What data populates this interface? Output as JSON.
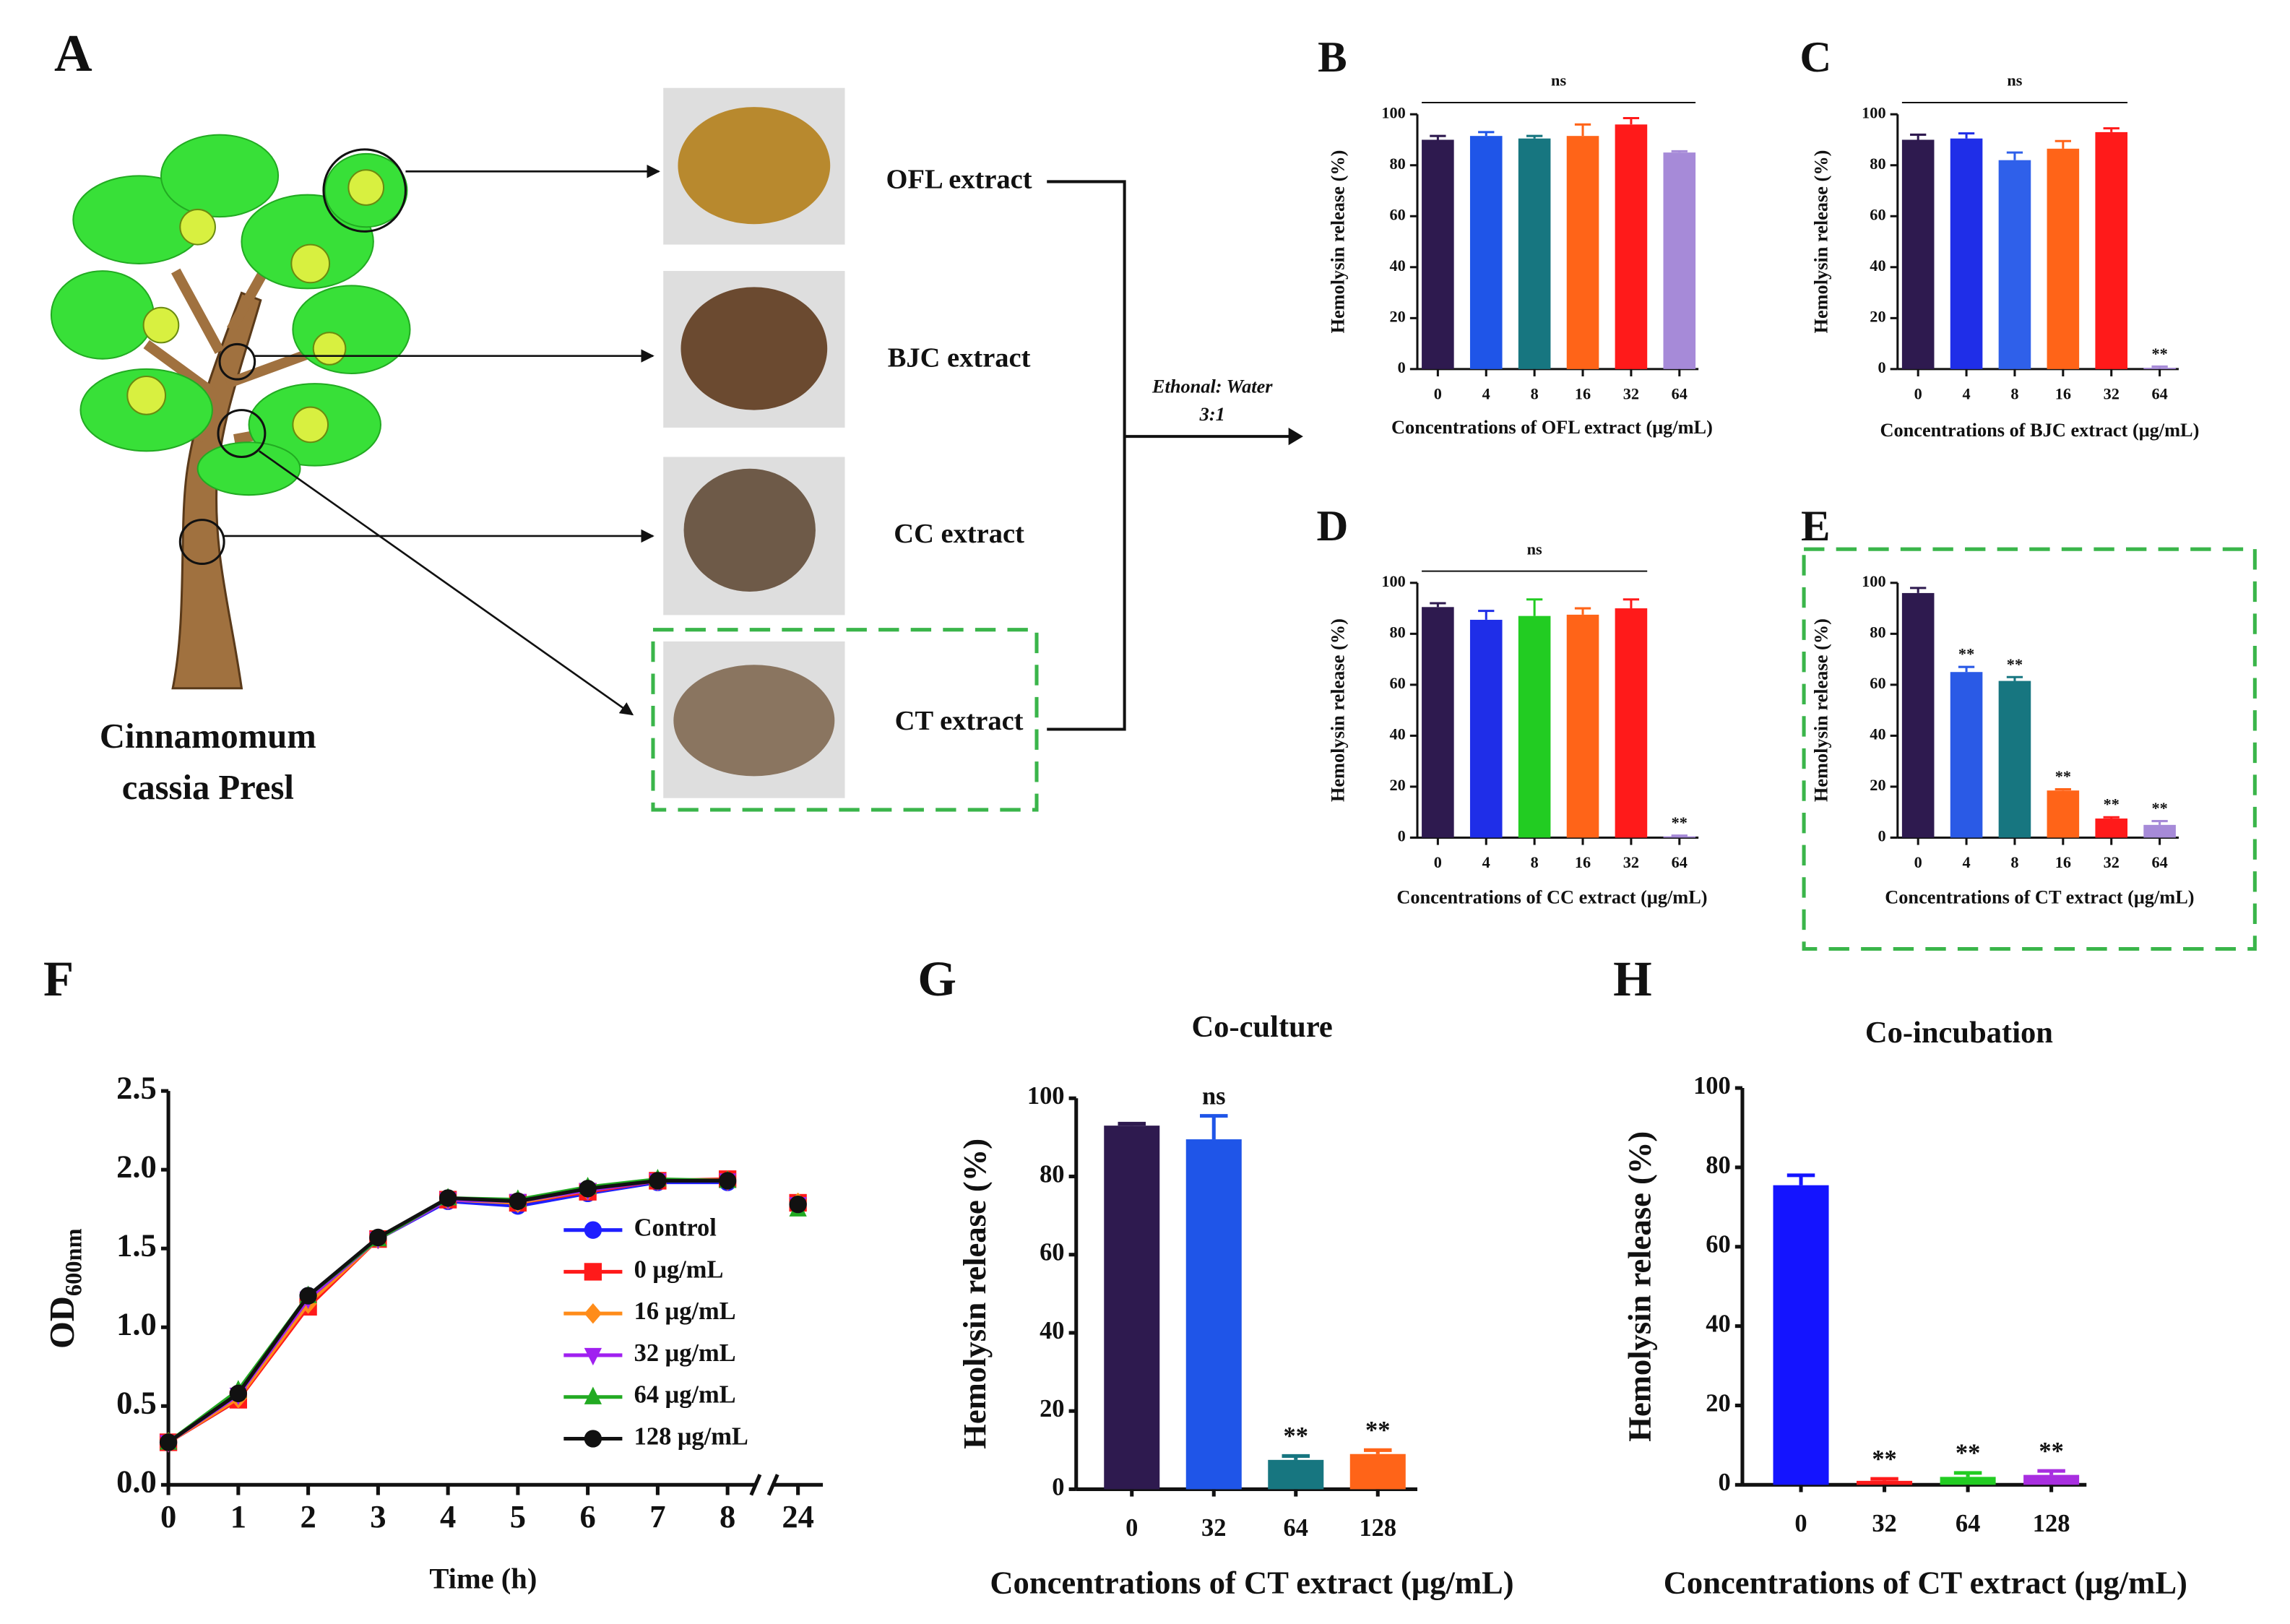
{
  "panel_a": {
    "label": "A",
    "species": [
      "Cinnamomum",
      "cassia Presl"
    ],
    "extracts": [
      "OFL extract",
      "BJC extract",
      "CC extract",
      "CT extract"
    ],
    "solvent": [
      "Ethonal: Water",
      "3:1"
    ]
  },
  "chart_data": [
    {
      "type": "bar",
      "label": "B",
      "ylabel": "Hemolysin release (%)",
      "xlabel": "Concentrations of OFL extract (μg/mL)",
      "categories": [
        "0",
        "4",
        "8",
        "16",
        "32",
        "64"
      ],
      "values": [
        90,
        91.5,
        90.5,
        91.5,
        96,
        85
      ],
      "errors": [
        1.5,
        1.5,
        1,
        4.5,
        2.5,
        0.5
      ],
      "colors": [
        "#2e1a4f",
        "#1f55e8",
        "#177680",
        "#ff6418",
        "#ff1a1a",
        "#a68ad8"
      ],
      "bar_labels": [
        null,
        null,
        null,
        null,
        null,
        null
      ],
      "bracket": {
        "text": "ns",
        "categories": [
          "0",
          "64"
        ]
      },
      "ylim": [
        0,
        100
      ],
      "yticks": [
        0,
        20,
        40,
        60,
        80,
        100
      ]
    },
    {
      "type": "bar",
      "label": "C",
      "ylabel": "Hemolysin release (%)",
      "xlabel": "Concentrations of BJC extract (μg/mL)",
      "categories": [
        "0",
        "4",
        "8",
        "16",
        "32",
        "64"
      ],
      "values": [
        90,
        90.5,
        82,
        86.5,
        93,
        0.5
      ],
      "errors": [
        2,
        2,
        3,
        3,
        1.5,
        0.5
      ],
      "colors": [
        "#2e1a4f",
        "#1f2ee8",
        "#2f60ea",
        "#ff6418",
        "#ff1a1a",
        "#a68ad8"
      ],
      "bar_labels": [
        null,
        null,
        null,
        null,
        null,
        "**"
      ],
      "bracket": {
        "text": "ns",
        "categories": [
          "0",
          "32"
        ]
      },
      "ylim": [
        0,
        100
      ],
      "yticks": [
        0,
        20,
        40,
        60,
        80,
        100
      ]
    },
    {
      "type": "bar",
      "label": "D",
      "ylabel": "Hemolysin release (%)",
      "xlabel": "Concentrations of CC extract (μg/mL)",
      "categories": [
        "0",
        "4",
        "8",
        "16",
        "32",
        "64"
      ],
      "values": [
        90.5,
        85.5,
        87,
        87.5,
        90,
        0.5
      ],
      "errors": [
        1.5,
        3.5,
        6.5,
        2.5,
        3.5,
        0.3
      ],
      "colors": [
        "#2e1a4f",
        "#1f2ee8",
        "#22cc22",
        "#ff6418",
        "#ff1a1a",
        "#a68ad8"
      ],
      "bar_labels": [
        null,
        null,
        null,
        null,
        null,
        "**"
      ],
      "bracket": {
        "text": "ns",
        "categories": [
          "0",
          "32"
        ]
      },
      "ylim": [
        0,
        100
      ],
      "yticks": [
        0,
        20,
        40,
        60,
        80,
        100
      ]
    },
    {
      "type": "bar",
      "label": "E",
      "ylabel": "Hemolysin release (%)",
      "xlabel": "Concentrations of CT extract (μg/mL)",
      "categories": [
        "0",
        "4",
        "8",
        "16",
        "32",
        "64"
      ],
      "values": [
        96,
        65,
        61.5,
        18.5,
        7.5,
        5
      ],
      "errors": [
        2,
        2,
        1.5,
        0.5,
        0.5,
        1.5
      ],
      "colors": [
        "#2e1a4f",
        "#2a5ae6",
        "#177680",
        "#ff6418",
        "#ff1a1a",
        "#a68ad8"
      ],
      "bar_labels": [
        null,
        "**",
        "**",
        "**",
        "**",
        "**"
      ],
      "ylim": [
        0,
        100
      ],
      "yticks": [
        0,
        20,
        40,
        60,
        80,
        100
      ]
    },
    {
      "type": "line",
      "label": "F",
      "ylabel": "OD",
      "ylabel_subscript": "600nm",
      "xlabel": "Time (h)",
      "x": [
        0,
        1,
        2,
        3,
        4,
        5,
        6,
        7,
        8,
        24
      ],
      "xlim": [
        [
          0,
          8.4
        ],
        [
          23.6,
          24.4
        ]
      ],
      "xticks": [
        0,
        1,
        2,
        3,
        4,
        5,
        6,
        7,
        8,
        24
      ],
      "ylim": [
        0,
        2.5
      ],
      "yticks": [
        {
          "value": 0,
          "label": "0.0"
        },
        0.5,
        {
          "value": 1,
          "label": "1.0"
        },
        1.5,
        {
          "value": 2,
          "label": "2.0"
        },
        2.5
      ],
      "legend": "right",
      "series": [
        {
          "name": "Control",
          "color": "#1f1fff",
          "marker": "circle",
          "values": [
            0.27,
            0.54,
            1.2,
            1.56,
            1.8,
            1.77,
            1.85,
            1.92,
            1.92,
            1.78
          ]
        },
        {
          "name": "0 μg/mL",
          "color": "#ff1a1a",
          "marker": "square",
          "values": [
            0.27,
            0.54,
            1.13,
            1.56,
            1.81,
            1.79,
            1.86,
            1.93,
            1.94,
            1.79
          ]
        },
        {
          "name": "16 μg/mL",
          "color": "#ff8c1a",
          "marker": "diamond",
          "values": [
            0.27,
            0.55,
            1.15,
            1.56,
            1.81,
            1.79,
            1.87,
            1.93,
            1.93,
            1.79
          ]
        },
        {
          "name": "32 μg/mL",
          "color": "#a020f0",
          "marker": "triangle-down",
          "values": [
            0.27,
            0.57,
            1.18,
            1.56,
            1.81,
            1.8,
            1.87,
            1.93,
            1.93,
            1.78
          ]
        },
        {
          "name": "64 μg/mL",
          "color": "#22aa22",
          "marker": "triangle-up",
          "values": [
            0.27,
            0.6,
            1.2,
            1.56,
            1.82,
            1.81,
            1.89,
            1.94,
            1.93,
            1.75
          ]
        },
        {
          "name": "128 μg/mL",
          "color": "#111111",
          "marker": "circle",
          "values": [
            0.27,
            0.58,
            1.2,
            1.57,
            1.82,
            1.8,
            1.88,
            1.93,
            1.93,
            1.78
          ]
        }
      ]
    },
    {
      "type": "bar",
      "label": "G",
      "title": "Co-culture",
      "ylabel": "Hemolysin release (%)",
      "xlabel": "Concentrations of CT extract (μg/mL)",
      "categories": [
        "0",
        "32",
        "64",
        "128"
      ],
      "values": [
        93,
        89.5,
        7.5,
        9
      ],
      "errors": [
        0.5,
        6,
        1,
        1
      ],
      "colors": [
        "#2e1a4f",
        "#1f55e8",
        "#177680",
        "#ff6418"
      ],
      "bar_labels": [
        null,
        "ns",
        "**",
        "**"
      ],
      "ylim": [
        0,
        100
      ],
      "yticks": [
        0,
        20,
        40,
        60,
        80,
        100
      ]
    },
    {
      "type": "bar",
      "label": "H",
      "title": "Co-incubation",
      "ylabel": "Hemolysin release (%)",
      "xlabel": "Concentrations of CT extract (μg/mL)",
      "categories": [
        "0",
        "32",
        "64",
        "128"
      ],
      "values": [
        75.5,
        1,
        2,
        2.5
      ],
      "errors": [
        2.5,
        0.5,
        1,
        1
      ],
      "colors": [
        "#1414ff",
        "#ff1a1a",
        "#22cc22",
        "#a82ee0"
      ],
      "bar_labels": [
        null,
        "**",
        "**",
        "**"
      ],
      "ylim": [
        0,
        100
      ],
      "yticks": [
        0,
        20,
        40,
        60,
        80,
        100
      ]
    }
  ]
}
